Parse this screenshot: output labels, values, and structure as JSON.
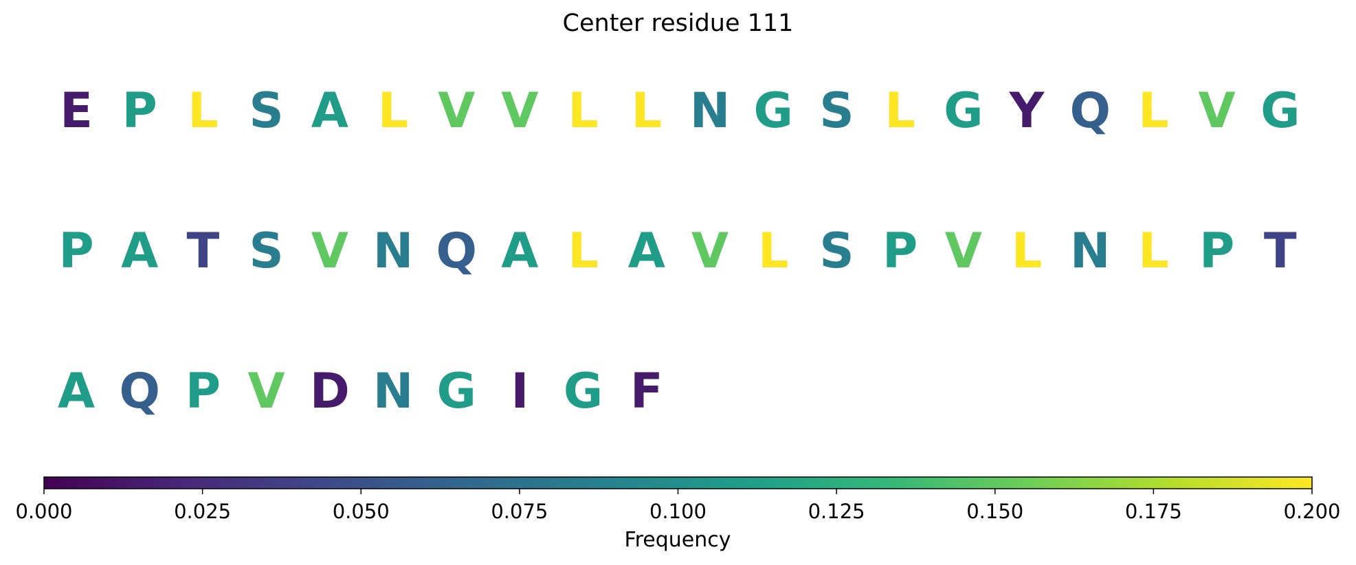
{
  "chart_data": {
    "type": "sequence-heatmap",
    "title": "Center residue 111",
    "rows": [
      [
        {
          "residue": "E",
          "frequency": 0.015
        },
        {
          "residue": "P",
          "frequency": 0.11
        },
        {
          "residue": "L",
          "frequency": 0.2
        },
        {
          "residue": "S",
          "frequency": 0.085
        },
        {
          "residue": "A",
          "frequency": 0.11
        },
        {
          "residue": "L",
          "frequency": 0.2
        },
        {
          "residue": "V",
          "frequency": 0.15
        },
        {
          "residue": "V",
          "frequency": 0.15
        },
        {
          "residue": "L",
          "frequency": 0.2
        },
        {
          "residue": "L",
          "frequency": 0.2
        },
        {
          "residue": "N",
          "frequency": 0.085
        },
        {
          "residue": "G",
          "frequency": 0.11
        },
        {
          "residue": "S",
          "frequency": 0.085
        },
        {
          "residue": "L",
          "frequency": 0.2
        },
        {
          "residue": "G",
          "frequency": 0.11
        },
        {
          "residue": "Y",
          "frequency": 0.015
        },
        {
          "residue": "Q",
          "frequency": 0.06
        },
        {
          "residue": "L",
          "frequency": 0.2
        },
        {
          "residue": "V",
          "frequency": 0.15
        },
        {
          "residue": "G",
          "frequency": 0.11
        }
      ],
      [
        {
          "residue": "P",
          "frequency": 0.11
        },
        {
          "residue": "A",
          "frequency": 0.11
        },
        {
          "residue": "T",
          "frequency": 0.04
        },
        {
          "residue": "S",
          "frequency": 0.085
        },
        {
          "residue": "V",
          "frequency": 0.15
        },
        {
          "residue": "N",
          "frequency": 0.085
        },
        {
          "residue": "Q",
          "frequency": 0.06
        },
        {
          "residue": "A",
          "frequency": 0.11
        },
        {
          "residue": "L",
          "frequency": 0.2
        },
        {
          "residue": "A",
          "frequency": 0.11
        },
        {
          "residue": "V",
          "frequency": 0.15
        },
        {
          "residue": "L",
          "frequency": 0.2
        },
        {
          "residue": "S",
          "frequency": 0.085
        },
        {
          "residue": "P",
          "frequency": 0.11
        },
        {
          "residue": "V",
          "frequency": 0.15
        },
        {
          "residue": "L",
          "frequency": 0.2
        },
        {
          "residue": "N",
          "frequency": 0.085
        },
        {
          "residue": "L",
          "frequency": 0.2
        },
        {
          "residue": "P",
          "frequency": 0.11
        },
        {
          "residue": "T",
          "frequency": 0.04
        }
      ],
      [
        {
          "residue": "A",
          "frequency": 0.11
        },
        {
          "residue": "Q",
          "frequency": 0.06
        },
        {
          "residue": "P",
          "frequency": 0.11
        },
        {
          "residue": "V",
          "frequency": 0.15
        },
        {
          "residue": "D",
          "frequency": 0.015
        },
        {
          "residue": "N",
          "frequency": 0.085
        },
        {
          "residue": "G",
          "frequency": 0.11
        },
        {
          "residue": "I",
          "frequency": 0.015
        },
        {
          "residue": "G",
          "frequency": 0.11
        },
        {
          "residue": "F",
          "frequency": 0.015
        }
      ]
    ],
    "colorbar": {
      "label": "Frequency",
      "colormap": "viridis",
      "range": [
        0,
        0.2
      ],
      "ticks": [
        "0.000",
        "0.025",
        "0.050",
        "0.075",
        "0.100",
        "0.125",
        "0.150",
        "0.175",
        "0.200"
      ],
      "orientation": "horizontal",
      "location": "bottom"
    },
    "grid": false
  },
  "colors": {
    "viridis_stops": [
      "#440154",
      "#482878",
      "#3e4a89",
      "#31688e",
      "#26828e",
      "#1f9e89",
      "#35b779",
      "#6ece58",
      "#b5de2b",
      "#fde725"
    ]
  }
}
